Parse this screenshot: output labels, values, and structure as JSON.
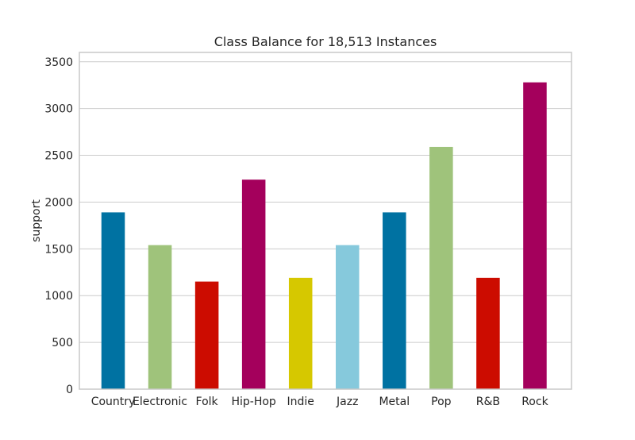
{
  "chart_data": {
    "type": "bar",
    "title": "Class Balance for 18,513 Instances",
    "xlabel": "",
    "ylabel": "support",
    "categories": [
      "Country",
      "Electronic",
      "Folk",
      "Hip-Hop",
      "Indie",
      "Jazz",
      "Metal",
      "Pop",
      "R&B",
      "Rock"
    ],
    "values": [
      1890,
      1540,
      1150,
      2240,
      1190,
      1540,
      1890,
      2590,
      1190,
      3280
    ],
    "colors": [
      "#0072a2",
      "#9fc37b",
      "#cc0c00",
      "#a4005c",
      "#d6c800",
      "#86c9dc",
      "#0072a2",
      "#9fc37b",
      "#cc0c00",
      "#a4005c"
    ],
    "ylim": [
      0,
      3600
    ],
    "yticks": [
      0,
      500,
      1000,
      1500,
      2000,
      2500,
      3000,
      3500
    ],
    "grid": true,
    "gridColor": "#cccccc",
    "frameColor": "#c8c8c8"
  }
}
